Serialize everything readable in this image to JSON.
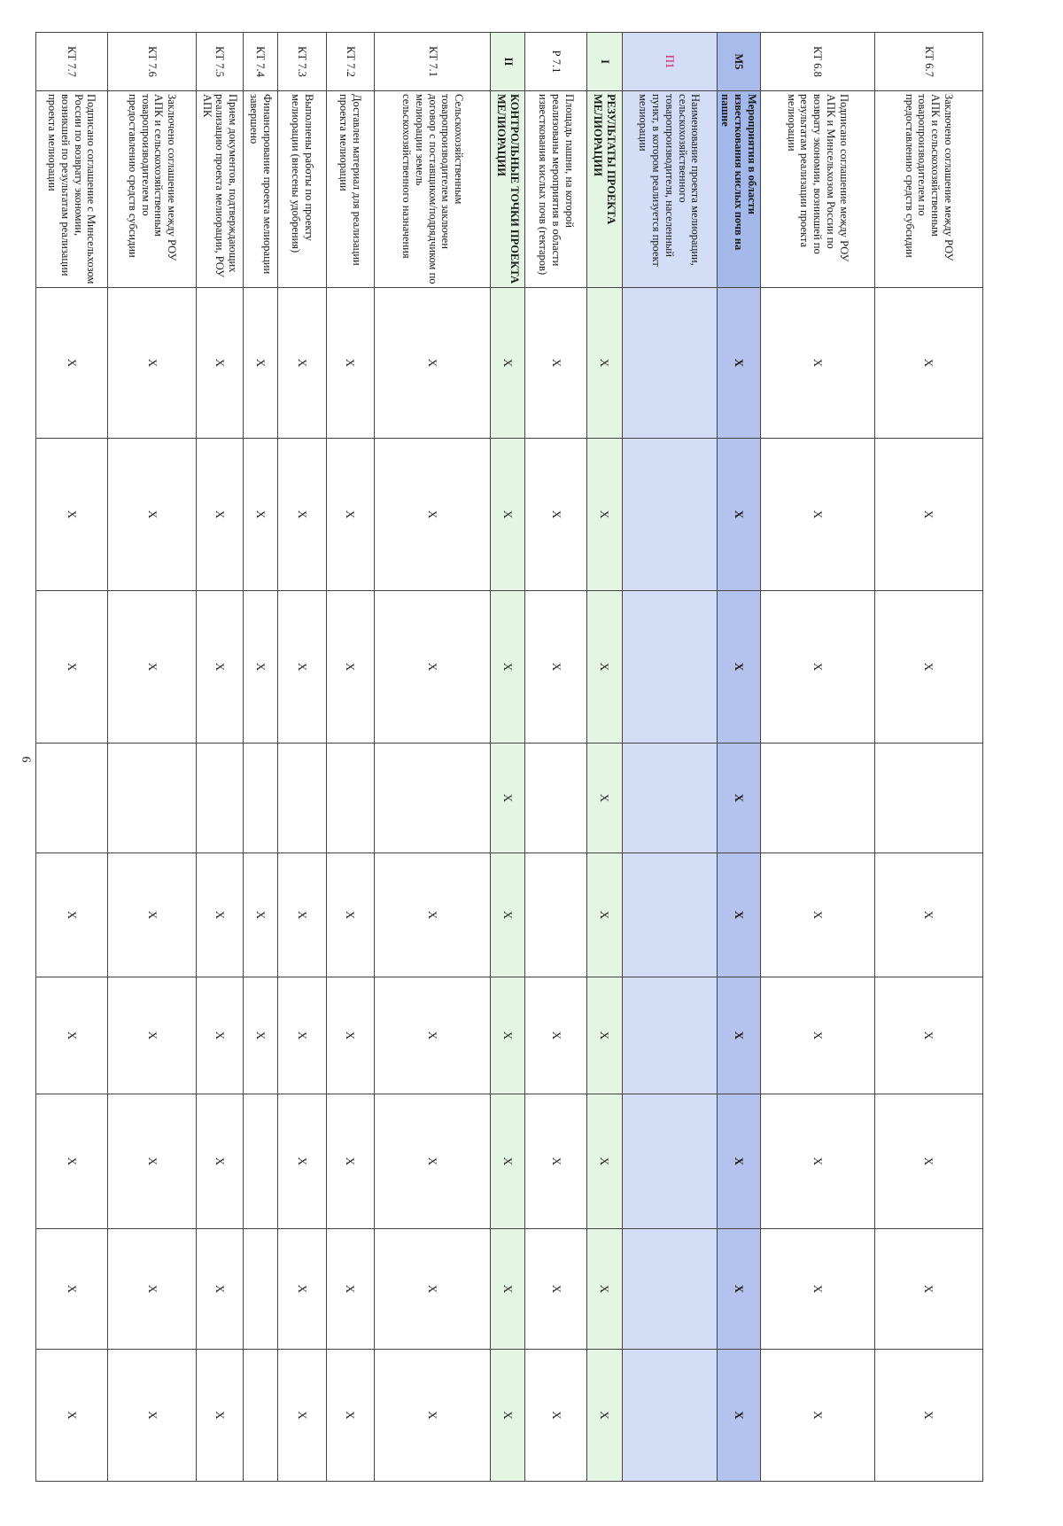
{
  "page_number": "9",
  "mark_symbol": "X",
  "rows": [
    {
      "code": "КТ 6.7",
      "name": "Заключено соглашение между РОУ АПК и сельскохозяйственным товаропроизводителем по предоставлению средств субсидии",
      "style": "plain",
      "marks": [
        "X",
        "X",
        "X",
        "",
        "X",
        "X",
        "X",
        "X",
        "X"
      ]
    },
    {
      "code": "КТ 6.8",
      "name": "Подписано соглашение между РОУ АПК и Минсельхозом России по возврату экономии, возникшей по результатам реализации проекта мелиорации",
      "style": "plain",
      "marks": [
        "X",
        "X",
        "X",
        "",
        "X",
        "X",
        "X",
        "X",
        "X"
      ]
    },
    {
      "code": "М5",
      "name": "Мероприятия в области известкования кислых почв на пашне",
      "style": "blue",
      "marks": [
        "X",
        "X",
        "X",
        "X",
        "X",
        "X",
        "X",
        "X",
        "X"
      ]
    },
    {
      "code": "П1",
      "name": "Наименование проекта мелиорации, сельскохозяйственного товаропроизводителя, населенный пункт, в котором реализуется проект мелиорации",
      "style": "lightblue",
      "marks": [
        "",
        "",
        "",
        "",
        "",
        "",
        "",
        "",
        ""
      ]
    },
    {
      "code": "I",
      "name": "РЕЗУЛЬТАТЫ ПРОЕКТА МЕЛИОРАЦИИ",
      "style": "green",
      "marks": [
        "X",
        "X",
        "X",
        "X",
        "X",
        "X",
        "X",
        "X",
        "X"
      ]
    },
    {
      "code": "Р 7.1",
      "name": "Площадь пашни, на которой реализованы мероприятия в области известкования кислых почв (гектаров)",
      "style": "plain",
      "marks": [
        "X",
        "X",
        "X",
        "",
        "",
        "X",
        "X",
        "X",
        "X"
      ]
    },
    {
      "code": "II",
      "name": "КОНТРОЛЬНЫЕ ТОЧКИ ПРОЕКТА МЕЛИОРАЦИИ",
      "style": "green",
      "marks": [
        "X",
        "X",
        "X",
        "X",
        "X",
        "X",
        "X",
        "X",
        "X"
      ]
    },
    {
      "code": "КТ 7.1",
      "name": "Сельскохозяйственным товаропроизводителем заключен договор с поставщиком/подрядчиком по мелиорации земель сельскохозяйственного назначения",
      "style": "plain",
      "marks": [
        "X",
        "X",
        "X",
        "",
        "X",
        "X",
        "X",
        "X",
        "X"
      ]
    },
    {
      "code": "КТ 7.2",
      "name": "Доставлен материал для реализации проекта мелиорации",
      "style": "plain",
      "marks": [
        "X",
        "X",
        "X",
        "",
        "X",
        "X",
        "X",
        "X",
        "X"
      ]
    },
    {
      "code": "КТ 7.3",
      "name": "Выполнены работы по проекту мелиорации (внесены удобрения)",
      "style": "plain",
      "marks": [
        "X",
        "X",
        "X",
        "",
        "X",
        "X",
        "X",
        "X",
        "X"
      ]
    },
    {
      "code": "КТ 7.4",
      "name": "Финансирование проекта мелиорации завершено",
      "style": "plain",
      "marks": [
        "X",
        "X",
        "X",
        "",
        "X",
        "X",
        "",
        "",
        ""
      ]
    },
    {
      "code": "КТ 7.5",
      "name": "Прием документов, подтверждающих реализацию проекта мелиорации, РОУ АПК",
      "style": "plain",
      "marks": [
        "X",
        "X",
        "X",
        "",
        "X",
        "X",
        "X",
        "X",
        "X"
      ]
    },
    {
      "code": "КТ 7.6",
      "name": "Заключено соглашение между РОУ АПК и сельскохозяйственным товаропроизводителем по предоставлению средств субсидии",
      "style": "plain",
      "marks": [
        "X",
        "X",
        "X",
        "",
        "X",
        "X",
        "X",
        "X",
        "X"
      ]
    },
    {
      "code": "КТ 7.7",
      "name": "Подписано соглашение с Минсельхозом России по возврату экономии, возникшей по результатам реализации проекта мелиорации",
      "style": "plain",
      "marks": [
        "X",
        "X",
        "X",
        "",
        "X",
        "X",
        "X",
        "X",
        "X"
      ]
    }
  ]
}
